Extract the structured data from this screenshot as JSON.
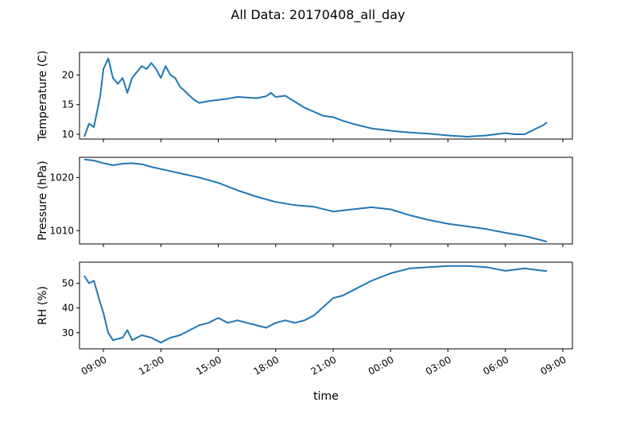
{
  "chart_data": {
    "type": "line",
    "title": "All Data: 20170408_all_day",
    "xlabel": "time",
    "color": "#1f77b4",
    "x_range": [
      "2017-04-08T07:45",
      "2017-04-09T09:30"
    ],
    "x_ticks": [
      {
        "label": "09:00",
        "t": "2017-04-08T09:00"
      },
      {
        "label": "12:00",
        "t": "2017-04-08T12:00"
      },
      {
        "label": "15:00",
        "t": "2017-04-08T15:00"
      },
      {
        "label": "18:00",
        "t": "2017-04-08T18:00"
      },
      {
        "label": "21:00",
        "t": "2017-04-08T21:00"
      },
      {
        "label": "00:00",
        "t": "2017-04-09T00:00"
      },
      {
        "label": "03:00",
        "t": "2017-04-09T03:00"
      },
      {
        "label": "06:00",
        "t": "2017-04-09T06:00"
      },
      {
        "label": "09:00",
        "t": "2017-04-09T09:00"
      }
    ],
    "panels": [
      {
        "ylabel": "Temperature (C)",
        "ylim": [
          9.2,
          23.8
        ],
        "yticks": [
          10,
          15,
          20
        ],
        "series": {
          "x": [
            "2017-04-08T08:00",
            "2017-04-08T08:15",
            "2017-04-08T08:30",
            "2017-04-08T08:50",
            "2017-04-08T09:00",
            "2017-04-08T09:15",
            "2017-04-08T09:30",
            "2017-04-08T09:45",
            "2017-04-08T10:00",
            "2017-04-08T10:15",
            "2017-04-08T10:30",
            "2017-04-08T10:45",
            "2017-04-08T11:00",
            "2017-04-08T11:15",
            "2017-04-08T11:30",
            "2017-04-08T11:45",
            "2017-04-08T12:00",
            "2017-04-08T12:15",
            "2017-04-08T12:30",
            "2017-04-08T12:45",
            "2017-04-08T13:00",
            "2017-04-08T13:15",
            "2017-04-08T13:30",
            "2017-04-08T13:45",
            "2017-04-08T14:00",
            "2017-04-08T14:30",
            "2017-04-08T15:00",
            "2017-04-08T15:30",
            "2017-04-08T16:00",
            "2017-04-08T16:30",
            "2017-04-08T17:00",
            "2017-04-08T17:30",
            "2017-04-08T17:45",
            "2017-04-08T18:00",
            "2017-04-08T18:30",
            "2017-04-08T19:00",
            "2017-04-08T19:30",
            "2017-04-08T20:00",
            "2017-04-08T20:30",
            "2017-04-08T21:00",
            "2017-04-08T21:30",
            "2017-04-08T22:00",
            "2017-04-08T23:00",
            "2017-04-09T00:00",
            "2017-04-09T01:00",
            "2017-04-09T02:00",
            "2017-04-09T03:00",
            "2017-04-09T04:00",
            "2017-04-09T05:00",
            "2017-04-09T06:00",
            "2017-04-09T06:30",
            "2017-04-09T07:00",
            "2017-04-09T07:30",
            "2017-04-09T08:00",
            "2017-04-09T08:10"
          ],
          "y": [
            9.6,
            11.8,
            11.2,
            16.5,
            21.0,
            22.8,
            19.5,
            18.5,
            19.5,
            17.0,
            19.5,
            20.5,
            21.5,
            21.0,
            22.0,
            21.0,
            19.5,
            21.5,
            20.0,
            19.5,
            18.0,
            17.3,
            16.5,
            15.8,
            15.3,
            15.6,
            15.8,
            16.0,
            16.3,
            16.2,
            16.1,
            16.4,
            17.0,
            16.3,
            16.5,
            15.5,
            14.5,
            13.8,
            13.1,
            12.9,
            12.3,
            11.8,
            11.0,
            10.6,
            10.3,
            10.1,
            9.8,
            9.6,
            9.8,
            10.2,
            10.0,
            10.0,
            10.8,
            11.6,
            12.0
          ]
        }
      },
      {
        "ylabel": "Pressure (hPa)",
        "ylim": [
          1007.5,
          1023.8
        ],
        "yticks": [
          1010,
          1020
        ],
        "series": {
          "x": [
            "2017-04-08T08:00",
            "2017-04-08T08:30",
            "2017-04-08T09:00",
            "2017-04-08T09:30",
            "2017-04-08T10:00",
            "2017-04-08T10:30",
            "2017-04-08T11:00",
            "2017-04-08T11:30",
            "2017-04-08T12:00",
            "2017-04-08T13:00",
            "2017-04-08T14:00",
            "2017-04-08T15:00",
            "2017-04-08T16:00",
            "2017-04-08T17:00",
            "2017-04-08T18:00",
            "2017-04-08T19:00",
            "2017-04-08T20:00",
            "2017-04-08T21:00",
            "2017-04-08T22:00",
            "2017-04-08T23:00",
            "2017-04-09T00:00",
            "2017-04-09T01:00",
            "2017-04-09T02:00",
            "2017-04-09T03:00",
            "2017-04-09T04:00",
            "2017-04-09T05:00",
            "2017-04-09T06:00",
            "2017-04-09T07:00",
            "2017-04-09T08:00",
            "2017-04-09T08:10"
          ],
          "y": [
            1023.4,
            1023.2,
            1022.7,
            1022.3,
            1022.6,
            1022.7,
            1022.5,
            1022.0,
            1021.6,
            1020.8,
            1020.0,
            1019.0,
            1017.6,
            1016.4,
            1015.4,
            1014.8,
            1014.5,
            1013.6,
            1014.0,
            1014.4,
            1014.0,
            1012.9,
            1012.0,
            1011.3,
            1010.8,
            1010.3,
            1009.6,
            1009.0,
            1008.1,
            1007.9
          ]
        }
      },
      {
        "ylabel": "RH (%)",
        "ylim": [
          23.5,
          58.5
        ],
        "yticks": [
          30,
          40,
          50
        ],
        "series": {
          "x": [
            "2017-04-08T08:00",
            "2017-04-08T08:15",
            "2017-04-08T08:30",
            "2017-04-08T08:50",
            "2017-04-08T09:00",
            "2017-04-08T09:15",
            "2017-04-08T09:30",
            "2017-04-08T10:00",
            "2017-04-08T10:15",
            "2017-04-08T10:30",
            "2017-04-08T11:00",
            "2017-04-08T11:30",
            "2017-04-08T12:00",
            "2017-04-08T12:30",
            "2017-04-08T13:00",
            "2017-04-08T13:30",
            "2017-04-08T14:00",
            "2017-04-08T14:30",
            "2017-04-08T15:00",
            "2017-04-08T15:30",
            "2017-04-08T16:00",
            "2017-04-08T16:30",
            "2017-04-08T17:00",
            "2017-04-08T17:30",
            "2017-04-08T18:00",
            "2017-04-08T18:30",
            "2017-04-08T19:00",
            "2017-04-08T19:30",
            "2017-04-08T20:00",
            "2017-04-08T21:00",
            "2017-04-08T21:30",
            "2017-04-08T22:00",
            "2017-04-08T23:00",
            "2017-04-09T00:00",
            "2017-04-09T01:00",
            "2017-04-09T02:00",
            "2017-04-09T03:00",
            "2017-04-09T04:00",
            "2017-04-09T05:00",
            "2017-04-09T06:00",
            "2017-04-09T07:00",
            "2017-04-09T08:00",
            "2017-04-09T08:10"
          ],
          "y": [
            53,
            50,
            51,
            42,
            38,
            30,
            27,
            28,
            31,
            27,
            29,
            28,
            26,
            28,
            29,
            31,
            33,
            34,
            36,
            34,
            35,
            34,
            33,
            32,
            34,
            35,
            34,
            35,
            37,
            44,
            45,
            47,
            51,
            54,
            56,
            56.5,
            57,
            57,
            56.5,
            55,
            56,
            55,
            55
          ]
        }
      }
    ]
  }
}
